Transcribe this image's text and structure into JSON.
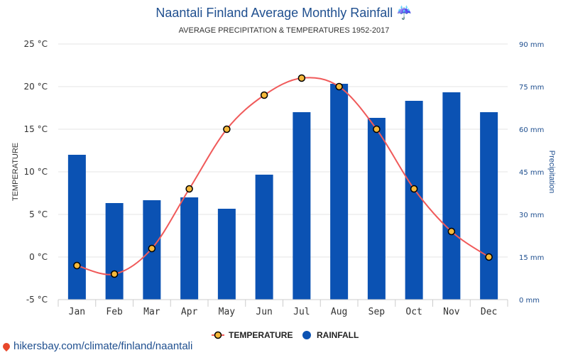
{
  "header": {
    "title": "Naantali Finland Average Monthly Rainfall ☔",
    "subtitle": "AVERAGE PRECIPITATION & TEMPERATURES 1952-2017"
  },
  "chart_data": {
    "type": "bar+line",
    "title": "Naantali Finland Average Monthly Rainfall ☔",
    "subtitle": "AVERAGE PRECIPITATION & TEMPERATURES 1952-2017",
    "categories": [
      "Jan",
      "Feb",
      "Mar",
      "Apr",
      "May",
      "Jun",
      "Jul",
      "Aug",
      "Sep",
      "Oct",
      "Nov",
      "Dec"
    ],
    "y_left": {
      "label": "TEMPERATURE",
      "ylim": [
        -5,
        25
      ],
      "ticks": [
        -5,
        0,
        5,
        10,
        15,
        20,
        25
      ],
      "tick_labels": [
        "-5 °C",
        "0 °C",
        "5 °C",
        "10 °C",
        "15 °C",
        "20 °C",
        "25 °C"
      ]
    },
    "y_right": {
      "label": "Precipitation",
      "ylim": [
        0,
        90
      ],
      "ticks": [
        0,
        15,
        30,
        45,
        60,
        75,
        90
      ],
      "tick_labels": [
        "0 mm",
        "15 mm",
        "30 mm",
        "45 mm",
        "60 mm",
        "75 mm",
        "90 mm"
      ]
    },
    "series": [
      {
        "name": "TEMPERATURE",
        "type": "line",
        "axis": "left",
        "color": "#f05a5a",
        "marker_fill": "#f6b93b",
        "values": [
          -1,
          -2,
          1,
          8,
          15,
          19,
          21,
          20,
          15,
          8,
          3,
          0
        ]
      },
      {
        "name": "RAINFALL",
        "type": "bar",
        "axis": "right",
        "color": "#0b52b3",
        "values": [
          51,
          34,
          35,
          36,
          32,
          44,
          66,
          76,
          64,
          70,
          73,
          66
        ]
      }
    ],
    "grid": true,
    "legend_position": "bottom-center"
  },
  "footer": {
    "source": "hikersbay.com/climate/finland/naantali"
  }
}
